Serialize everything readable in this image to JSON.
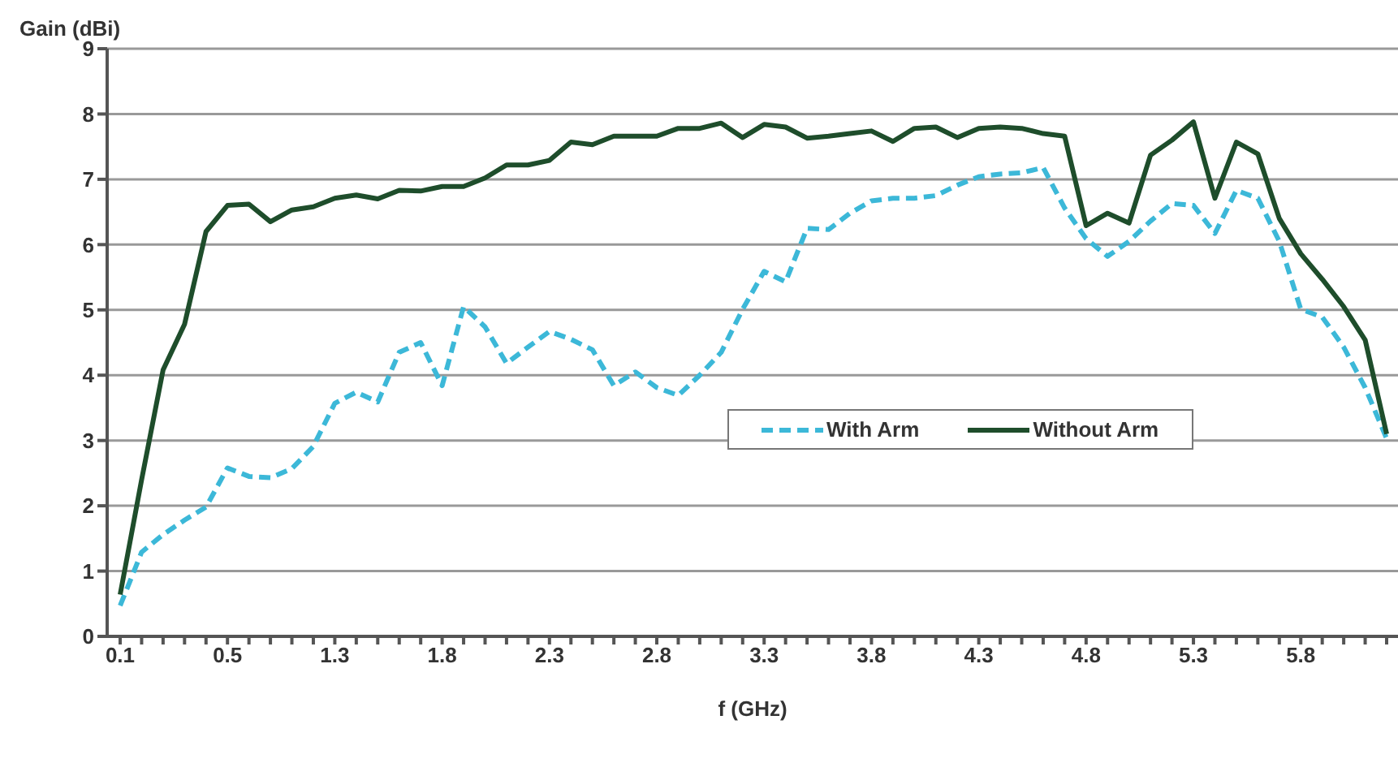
{
  "chart_data": {
    "type": "line",
    "xlabel": "f (GHz)",
    "ylabel": "Gain (dBi)",
    "categories": [
      "0.1",
      null,
      null,
      null,
      null,
      "0.5",
      null,
      null,
      null,
      null,
      "1.3",
      null,
      null,
      null,
      null,
      "1.8",
      null,
      null,
      null,
      null,
      "2.3",
      null,
      null,
      null,
      null,
      "2.8",
      null,
      null,
      null,
      null,
      "3.3",
      null,
      null,
      null,
      null,
      "3.8",
      null,
      null,
      null,
      null,
      "4.3",
      null,
      null,
      null,
      null,
      "4.8",
      null,
      null,
      null,
      null,
      "5.3",
      null,
      null,
      null,
      null,
      "5.8",
      null,
      null,
      null,
      null
    ],
    "series": [
      {
        "name": "With Arm",
        "color": "#3cb8d8",
        "line_style": "dashed",
        "values": [
          0.47,
          1.29,
          1.56,
          1.78,
          1.98,
          2.58,
          2.45,
          2.43,
          2.57,
          2.91,
          3.57,
          3.74,
          3.59,
          4.35,
          4.5,
          3.84,
          5.05,
          4.74,
          4.18,
          4.43,
          4.67,
          4.55,
          4.39,
          3.84,
          4.05,
          3.81,
          3.69,
          4.0,
          4.35,
          5.01,
          5.59,
          5.43,
          6.25,
          6.23,
          6.48,
          6.67,
          6.71,
          6.71,
          6.75,
          6.91,
          7.04,
          7.08,
          7.1,
          7.18,
          6.56,
          6.09,
          5.82,
          6.05,
          6.36,
          6.63,
          6.6,
          6.17,
          6.83,
          6.71,
          6.05,
          5.01,
          4.89,
          4.43,
          3.81,
          3.03
        ]
      },
      {
        "name": "Without Arm",
        "color": "#1e4d2b",
        "line_style": "solid",
        "values": [
          0.64,
          2.4,
          4.08,
          4.78,
          6.2,
          6.6,
          6.62,
          6.35,
          6.53,
          6.58,
          6.71,
          6.76,
          6.7,
          6.83,
          6.82,
          6.89,
          6.89,
          7.02,
          7.22,
          7.22,
          7.29,
          7.57,
          7.53,
          7.66,
          7.66,
          7.66,
          7.78,
          7.78,
          7.86,
          7.64,
          7.84,
          7.8,
          7.63,
          7.66,
          7.7,
          7.74,
          7.58,
          7.78,
          7.8,
          7.64,
          7.78,
          7.8,
          7.78,
          7.7,
          7.66,
          6.29,
          6.48,
          6.33,
          7.37,
          7.6,
          7.88,
          6.71,
          7.57,
          7.39,
          6.4,
          5.86,
          5.47,
          5.05,
          4.54,
          3.1
        ]
      }
    ],
    "ylim": [
      0,
      9
    ],
    "yticks": [
      0,
      1,
      2,
      3,
      4,
      5,
      6,
      7,
      8,
      9
    ],
    "grid": "y",
    "legend": "right",
    "marker": "none"
  }
}
